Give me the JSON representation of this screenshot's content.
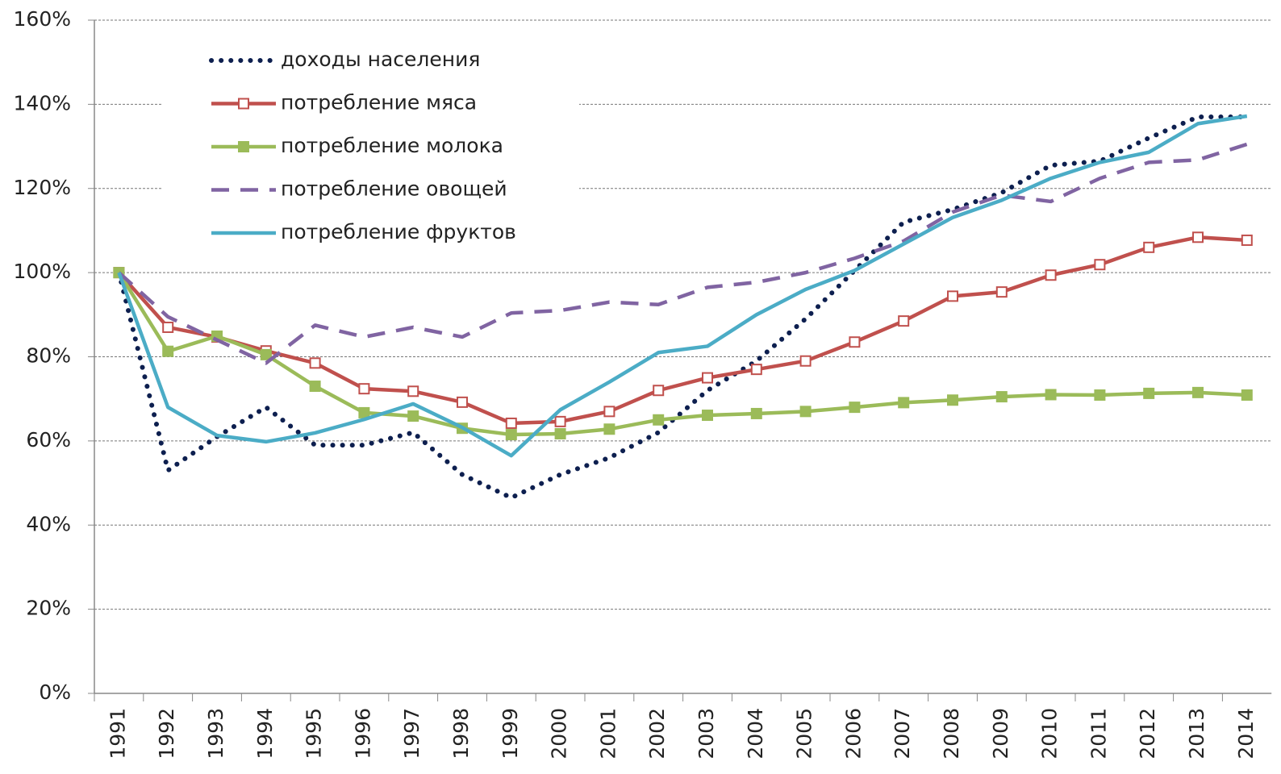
{
  "chart_data": {
    "type": "line",
    "categories": [
      "1991",
      "1992",
      "1993",
      "1994",
      "1995",
      "1996",
      "1997",
      "1998",
      "1999",
      "2000",
      "2001",
      "2002",
      "2003",
      "2004",
      "2005",
      "2006",
      "2007",
      "2008",
      "2009",
      "2010",
      "2011",
      "2012",
      "2013",
      "2014"
    ],
    "series": [
      {
        "name": "доходы населения",
        "color": "#0d1f4f",
        "style": "dotted",
        "values": [
          100,
          53,
          61,
          68,
          59,
          59,
          62,
          52,
          46.5,
          52,
          56,
          62,
          72,
          79,
          89,
          100.5,
          112,
          115,
          119,
          125.5,
          126.5,
          132,
          137,
          137
        ]
      },
      {
        "name": "потребление мяса",
        "color": "#c0504d",
        "style": "solid",
        "marker": "square-open",
        "values": [
          100,
          87,
          84.7,
          81.4,
          78.5,
          72.4,
          71.8,
          69.2,
          64.2,
          64.6,
          67,
          72,
          75,
          77,
          79,
          83.5,
          88.5,
          94.4,
          95.4,
          99.4,
          101.9,
          106,
          108.4,
          107.7
        ]
      },
      {
        "name": "потребление молока",
        "color": "#9bbb59",
        "style": "solid",
        "marker": "square",
        "values": [
          100,
          81.3,
          84.9,
          80.5,
          73,
          66.7,
          65.9,
          63,
          61.5,
          61.7,
          62.8,
          65,
          66.1,
          66.5,
          67,
          68,
          69.1,
          69.7,
          70.5,
          71,
          70.9,
          71.3,
          71.5,
          70.9
        ]
      },
      {
        "name": "потребление овощей",
        "color": "#8064a2",
        "style": "dashed",
        "values": [
          100,
          89.5,
          84,
          78.5,
          87.5,
          84.7,
          87,
          84.7,
          90.4,
          91,
          93,
          92.4,
          96.5,
          97.7,
          100,
          103.4,
          107.5,
          114.4,
          118.4,
          116.9,
          122.4,
          126.2,
          126.8,
          130.5
        ]
      },
      {
        "name": "потребление фруктов",
        "color": "#4bacc6",
        "style": "solid",
        "values": [
          100,
          68,
          61.3,
          59.8,
          61.9,
          65.1,
          68.8,
          63.2,
          56.5,
          67.4,
          74,
          81,
          82.5,
          90,
          96,
          100.5,
          106.8,
          113.1,
          117.2,
          122.4,
          126.2,
          128.6,
          135.4,
          137.2
        ]
      }
    ],
    "ylim": [
      0,
      160
    ],
    "yticks": [
      {
        "value": 0,
        "label": "0%"
      },
      {
        "value": 20,
        "label": "20%"
      },
      {
        "value": 40,
        "label": "40%"
      },
      {
        "value": 60,
        "label": "60%"
      },
      {
        "value": 80,
        "label": "80%"
      },
      {
        "value": 100,
        "label": "100%"
      },
      {
        "value": 120,
        "label": "120%"
      },
      {
        "value": 140,
        "label": "140%"
      },
      {
        "value": 160,
        "label": "160%"
      }
    ],
    "grid": true,
    "legend": "top-left"
  }
}
